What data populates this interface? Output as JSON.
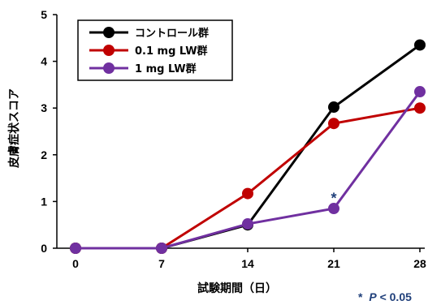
{
  "chart_data": {
    "type": "line",
    "xlabel": "試験期間（日）",
    "ylabel": "皮膚症状スコア",
    "x": [
      0,
      7,
      14,
      21,
      28
    ],
    "xlim": [
      0,
      28
    ],
    "ylim": [
      0,
      5
    ],
    "yticks": [
      0,
      1,
      2,
      3,
      4,
      5
    ],
    "series": [
      {
        "name": "コントロール群",
        "color": "#000000",
        "values": [
          0,
          0,
          0.5,
          3.02,
          4.35
        ]
      },
      {
        "name": "0.1 mg LW群",
        "color": "#c00000",
        "values": [
          0,
          0,
          1.17,
          2.67,
          3.0
        ]
      },
      {
        "name": "1 mg LW群",
        "color": "#7030a0",
        "values": [
          0,
          0,
          0.52,
          0.85,
          3.35
        ]
      }
    ],
    "annotations": [
      {
        "text": "*",
        "x": 21,
        "y": 1.1
      }
    ],
    "footnote": {
      "star": "*",
      "p": "P",
      "rest": " < 0.05"
    },
    "legend_position": "top-left",
    "grid": false
  }
}
